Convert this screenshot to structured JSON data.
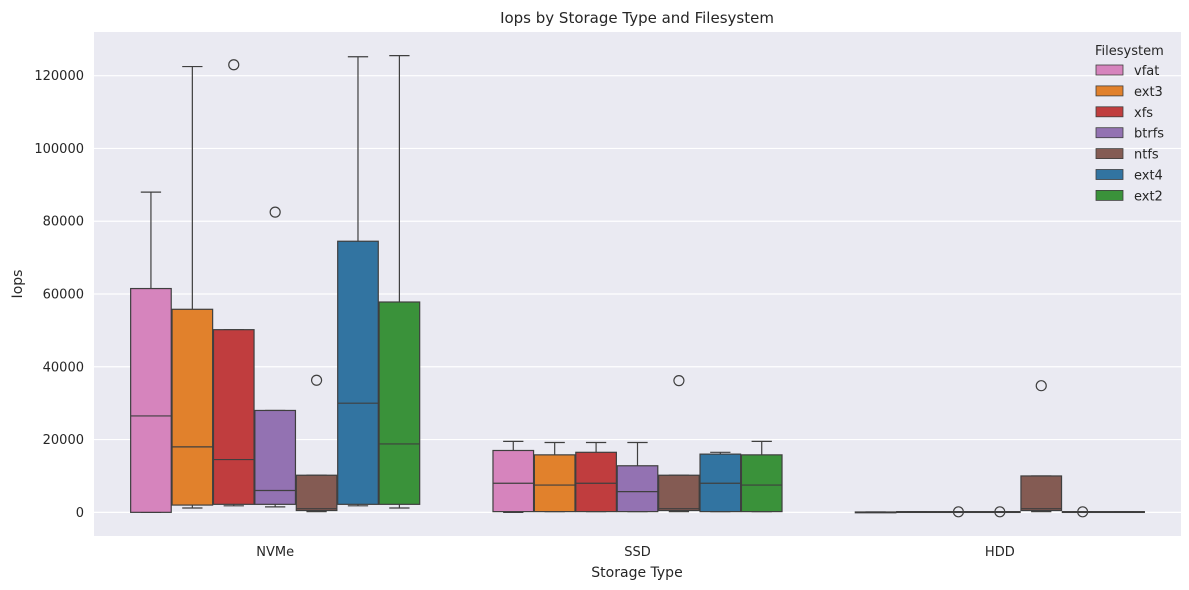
{
  "chart_data": {
    "type": "boxplot",
    "title": "Iops by Storage Type and Filesystem",
    "xlabel": "Storage Type",
    "ylabel": "Iops",
    "ylim": [
      -6500,
      132000
    ],
    "yticks": [
      0,
      20000,
      40000,
      60000,
      80000,
      100000,
      120000
    ],
    "ytick_labels": [
      "0",
      "20000",
      "40000",
      "60000",
      "80000",
      "100000",
      "120000"
    ],
    "grid": true,
    "categories": [
      "NVMe",
      "SSD",
      "HDD"
    ],
    "legend": {
      "title": "Filesystem",
      "placement": "top-right"
    },
    "series": [
      {
        "name": "vfat",
        "color": "#d684bd",
        "boxes": [
          {
            "whislo": 0,
            "q1": 0,
            "med": 26500,
            "q3": 61500,
            "whishi": 88000,
            "fliers": []
          },
          {
            "whislo": 0,
            "q1": 200,
            "med": 8000,
            "q3": 17000,
            "whishi": 19500,
            "fliers": []
          },
          {
            "whislo": 0,
            "q1": 0,
            "med": 50,
            "q3": 100,
            "whishi": 100,
            "fliers": []
          }
        ]
      },
      {
        "name": "ext3",
        "color": "#e1812c",
        "boxes": [
          {
            "whislo": 1200,
            "q1": 2000,
            "med": 18000,
            "q3": 55800,
            "whishi": 122500,
            "fliers": []
          },
          {
            "whislo": 200,
            "q1": 200,
            "med": 7500,
            "q3": 15800,
            "whishi": 19200,
            "fliers": []
          },
          {
            "whislo": 100,
            "q1": 100,
            "med": 100,
            "q3": 200,
            "whishi": 200,
            "fliers": []
          }
        ]
      },
      {
        "name": "xfs",
        "color": "#c03d3e",
        "boxes": [
          {
            "whislo": 1800,
            "q1": 2200,
            "med": 14500,
            "q3": 50200,
            "whishi": 50200,
            "fliers": [
              123000
            ]
          },
          {
            "whislo": 200,
            "q1": 200,
            "med": 8000,
            "q3": 16500,
            "whishi": 19200,
            "fliers": []
          },
          {
            "whislo": 100,
            "q1": 100,
            "med": 100,
            "q3": 200,
            "whishi": 200,
            "fliers": [
              150
            ]
          }
        ]
      },
      {
        "name": "btrfs",
        "color": "#9372b2",
        "boxes": [
          {
            "whislo": 1500,
            "q1": 2200,
            "med": 6000,
            "q3": 28000,
            "whishi": 28000,
            "fliers": [
              82500
            ]
          },
          {
            "whislo": 200,
            "q1": 200,
            "med": 5700,
            "q3": 12800,
            "whishi": 19200,
            "fliers": []
          },
          {
            "whislo": 100,
            "q1": 100,
            "med": 100,
            "q3": 200,
            "whishi": 200,
            "fliers": [
              150
            ]
          }
        ]
      },
      {
        "name": "ntfs",
        "color": "#845b53",
        "boxes": [
          {
            "whislo": 200,
            "q1": 500,
            "med": 1000,
            "q3": 10200,
            "whishi": 10200,
            "fliers": [
              36300
            ]
          },
          {
            "whislo": 200,
            "q1": 500,
            "med": 1000,
            "q3": 10200,
            "whishi": 10200,
            "fliers": [
              36200
            ]
          },
          {
            "whislo": 200,
            "q1": 500,
            "med": 1000,
            "q3": 10000,
            "whishi": 10000,
            "fliers": [
              34800
            ]
          }
        ]
      },
      {
        "name": "ext4",
        "color": "#3274a1",
        "boxes": [
          {
            "whislo": 1800,
            "q1": 2200,
            "med": 30000,
            "q3": 74500,
            "whishi": 125200,
            "fliers": []
          },
          {
            "whislo": 200,
            "q1": 200,
            "med": 8000,
            "q3": 16000,
            "whishi": 16500,
            "fliers": []
          },
          {
            "whislo": 100,
            "q1": 100,
            "med": 100,
            "q3": 200,
            "whishi": 200,
            "fliers": [
              150
            ]
          }
        ]
      },
      {
        "name": "ext2",
        "color": "#3a923a",
        "boxes": [
          {
            "whislo": 1200,
            "q1": 2200,
            "med": 18800,
            "q3": 57800,
            "whishi": 125500,
            "fliers": []
          },
          {
            "whislo": 200,
            "q1": 200,
            "med": 7500,
            "q3": 15800,
            "whishi": 19500,
            "fliers": []
          },
          {
            "whislo": 100,
            "q1": 100,
            "med": 100,
            "q3": 200,
            "whishi": 200,
            "fliers": []
          }
        ]
      }
    ]
  }
}
